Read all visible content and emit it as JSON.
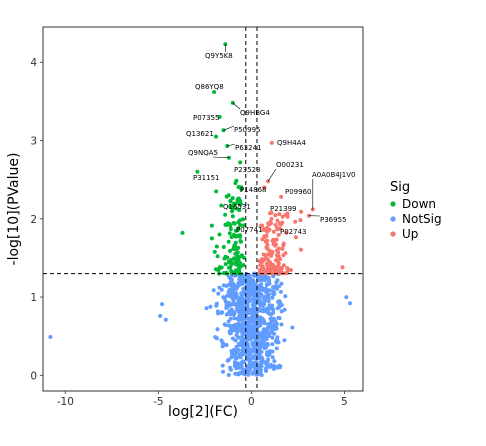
{
  "chart_data": {
    "type": "scatter",
    "title": "",
    "xlabel": "log[2](FC)",
    "ylabel": "-log[10](PValue)",
    "xlim": [
      -11.2,
      6.0
    ],
    "ylim": [
      -0.2,
      4.45
    ],
    "xticks": [
      -10,
      -5,
      0,
      5
    ],
    "yticks": [
      0,
      1,
      2,
      3,
      4
    ],
    "thresholds": {
      "fc": [
        -0.3,
        0.3
      ],
      "pvalue": 1.3
    },
    "grid": false,
    "legend": {
      "title": "Sig",
      "placement": "right",
      "entries": [
        {
          "name": "Down",
          "color": "#00BA38"
        },
        {
          "name": "NotSig",
          "color": "#619CFF"
        },
        {
          "name": "Up",
          "color": "#F8766D"
        }
      ]
    },
    "series": [
      {
        "name": "Down",
        "color": "#00BA38",
        "description": "log2FC < -0.3 and -log10P > 1.3"
      },
      {
        "name": "NotSig",
        "color": "#619CFF",
        "description": "-log10P <= 1.3"
      },
      {
        "name": "Up",
        "color": "#F8766D",
        "description": "log2FC > 0.3 and -log10P > 1.3"
      }
    ],
    "labeled_points": [
      {
        "label": "Q9Y5K8",
        "x": -1.4,
        "y": 4.23,
        "color": "#00BA38"
      },
      {
        "label": "Q86YQ8",
        "x": -2.0,
        "y": 3.62,
        "color": "#00BA38"
      },
      {
        "label": "Q9HBG4",
        "x": -1.0,
        "y": 3.48,
        "color": "#00BA38"
      },
      {
        "label": "P07355",
        "x": -1.7,
        "y": 3.3,
        "color": "#00BA38"
      },
      {
        "label": "Q13621",
        "x": -1.9,
        "y": 3.05,
        "color": "#00BA38"
      },
      {
        "label": "P50995",
        "x": -1.5,
        "y": 3.13,
        "color": "#00BA38"
      },
      {
        "label": "Q9H4A4",
        "x": 1.1,
        "y": 2.97,
        "color": "#F8766D"
      },
      {
        "label": "P63241",
        "x": -1.3,
        "y": 2.93,
        "color": "#00BA38"
      },
      {
        "label": "Q9NQA5",
        "x": -1.2,
        "y": 2.78,
        "color": "#00BA38"
      },
      {
        "label": "O00231",
        "x": 0.9,
        "y": 2.48,
        "color": "#F8766D"
      },
      {
        "label": "P23528",
        "x": -0.6,
        "y": 2.72,
        "color": "#00BA38"
      },
      {
        "label": "A0A0B4J1V0",
        "x": 3.3,
        "y": 2.12,
        "color": "#F8766D"
      },
      {
        "label": "P31151",
        "x": -2.9,
        "y": 2.6,
        "color": "#00BA38"
      },
      {
        "label": "P14868",
        "x": 0.7,
        "y": 2.4,
        "color": "#F8766D"
      },
      {
        "label": "P09960",
        "x": 1.6,
        "y": 2.28,
        "color": "#F8766D"
      },
      {
        "label": "Q16531",
        "x": -1.0,
        "y": 2.16,
        "color": "#00BA38"
      },
      {
        "label": "P21399",
        "x": 1.5,
        "y": 2.06,
        "color": "#F8766D"
      },
      {
        "label": "P36955",
        "x": 3.1,
        "y": 2.04,
        "color": "#F8766D"
      },
      {
        "label": "P07741",
        "x": -0.6,
        "y": 1.92,
        "color": "#00BA38"
      },
      {
        "label": "P02743",
        "x": 1.3,
        "y": 1.92,
        "color": "#F8766D"
      }
    ],
    "outliers": [
      {
        "x": -10.8,
        "y": 0.49,
        "color": "#619CFF"
      },
      {
        "x": -4.9,
        "y": 0.76,
        "color": "#619CFF"
      },
      {
        "x": -4.8,
        "y": 0.91,
        "color": "#619CFF"
      },
      {
        "x": -4.6,
        "y": 0.71,
        "color": "#619CFF"
      },
      {
        "x": 5.1,
        "y": 1.0,
        "color": "#619CFF"
      },
      {
        "x": 5.3,
        "y": 0.92,
        "color": "#619CFF"
      },
      {
        "x": -3.7,
        "y": 1.82,
        "color": "#00BA38"
      },
      {
        "x": 4.9,
        "y": 1.38,
        "color": "#F8766D"
      }
    ],
    "bulk": {
      "NotSig": {
        "count": 900,
        "x_range": [
          -4.5,
          4.8
        ],
        "y_range": [
          0.0,
          1.3
        ]
      },
      "Down": {
        "count": 120,
        "x_range": [
          -3.7,
          -0.3
        ],
        "y_range": [
          1.3,
          2.5
        ]
      },
      "Up": {
        "count": 140,
        "x_range": [
          0.3,
          4.7
        ],
        "y_range": [
          1.3,
          2.1
        ]
      }
    }
  }
}
